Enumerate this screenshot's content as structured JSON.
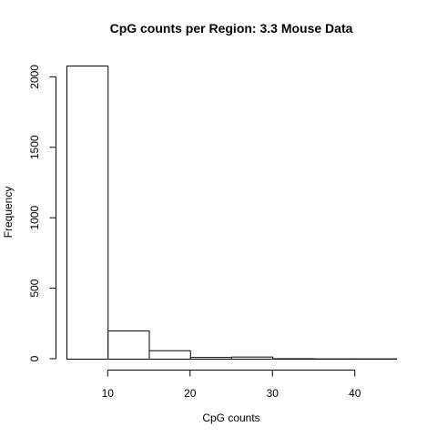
{
  "chart_data": {
    "type": "bar",
    "title": "CpG counts per Region: 3.3 Mouse Data",
    "xlabel": "CpG counts",
    "ylabel": "Frequency",
    "bins": [
      {
        "start": 5,
        "end": 10,
        "count": 2080
      },
      {
        "start": 10,
        "end": 15,
        "count": 200
      },
      {
        "start": 15,
        "end": 20,
        "count": 60
      },
      {
        "start": 20,
        "end": 25,
        "count": 12
      },
      {
        "start": 25,
        "end": 30,
        "count": 15
      },
      {
        "start": 30,
        "end": 35,
        "count": 3
      },
      {
        "start": 35,
        "end": 40,
        "count": 2
      },
      {
        "start": 40,
        "end": 45,
        "count": 2
      }
    ],
    "xlim": [
      5,
      45
    ],
    "ylim": [
      0,
      2080
    ],
    "x_ticks": [
      10,
      20,
      30,
      40
    ],
    "y_ticks": [
      0,
      500,
      1000,
      1500,
      2000
    ],
    "grid": false,
    "bar_fill": "#ffffff",
    "bar_stroke": "#000000"
  }
}
